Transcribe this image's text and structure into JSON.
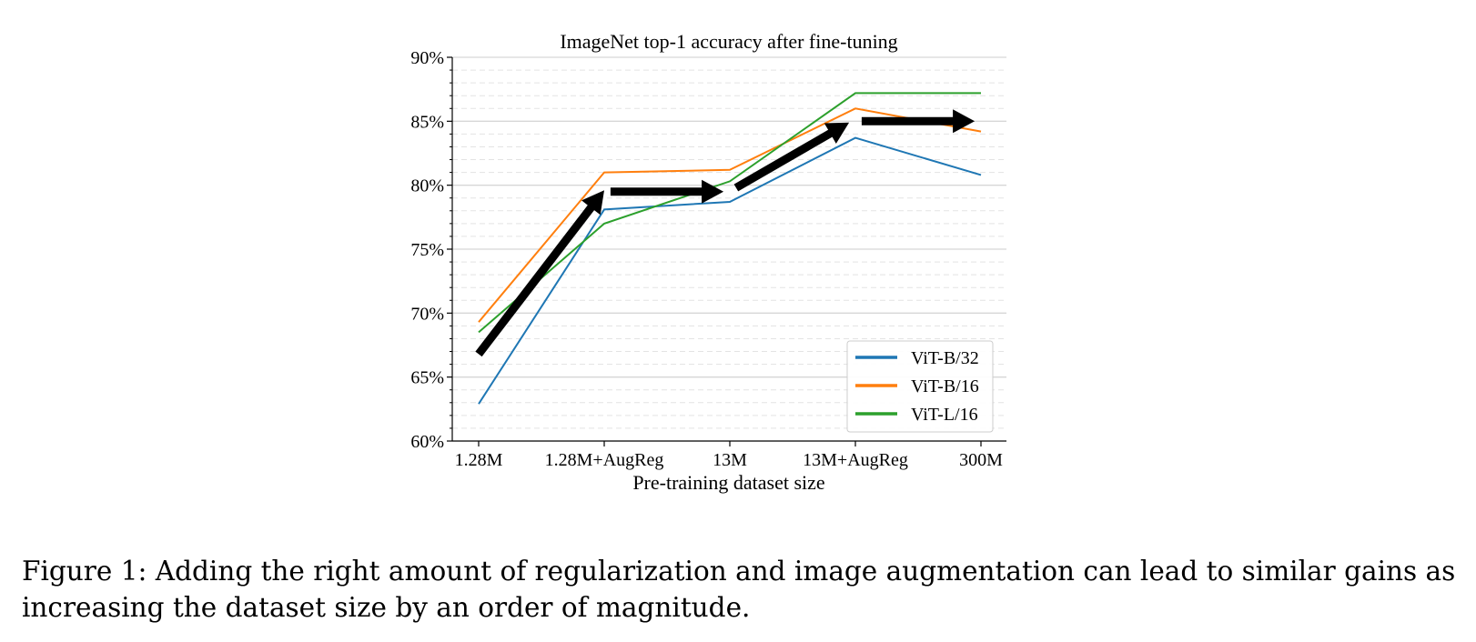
{
  "chart_data": {
    "type": "line",
    "title": "ImageNet top-1 accuracy after fine-tuning",
    "xlabel": "Pre-training dataset size",
    "ylabel": "",
    "categories": [
      "1.28M",
      "1.28M+AugReg",
      "13M",
      "13M+AugReg",
      "300M"
    ],
    "ylim": [
      60,
      90
    ],
    "yticks": [
      60,
      65,
      70,
      75,
      80,
      85,
      90
    ],
    "ytick_labels": [
      "60%",
      "65%",
      "70%",
      "75%",
      "80%",
      "85%",
      "90%"
    ],
    "grid": "on",
    "legend_position": "lower-right",
    "series": [
      {
        "name": "ViT-B/32",
        "color": "#1f77b4",
        "values": [
          62.9,
          78.1,
          78.7,
          83.7,
          80.8
        ]
      },
      {
        "name": "ViT-B/16",
        "color": "#ff7f0e",
        "values": [
          69.3,
          81.0,
          81.2,
          86.0,
          84.2
        ]
      },
      {
        "name": "ViT-L/16",
        "color": "#2ca02c",
        "values": [
          68.5,
          77.0,
          80.3,
          87.2,
          87.2
        ]
      }
    ],
    "annotations": {
      "type": "arrows",
      "color": "#000000",
      "arrows": [
        {
          "from": [
            0,
            66.8
          ],
          "to": [
            1,
            79.6
          ]
        },
        {
          "from": [
            1.05,
            79.5
          ],
          "to": [
            1.95,
            79.5
          ]
        },
        {
          "from": [
            2.05,
            79.8
          ],
          "to": [
            2.95,
            84.9
          ]
        },
        {
          "from": [
            3.05,
            85.0
          ],
          "to": [
            3.95,
            85.0
          ]
        }
      ]
    }
  },
  "caption": "Figure 1: Adding the right amount of regularization and image augmentation can lead to similar gains as increasing the dataset size by an order of magnitude."
}
